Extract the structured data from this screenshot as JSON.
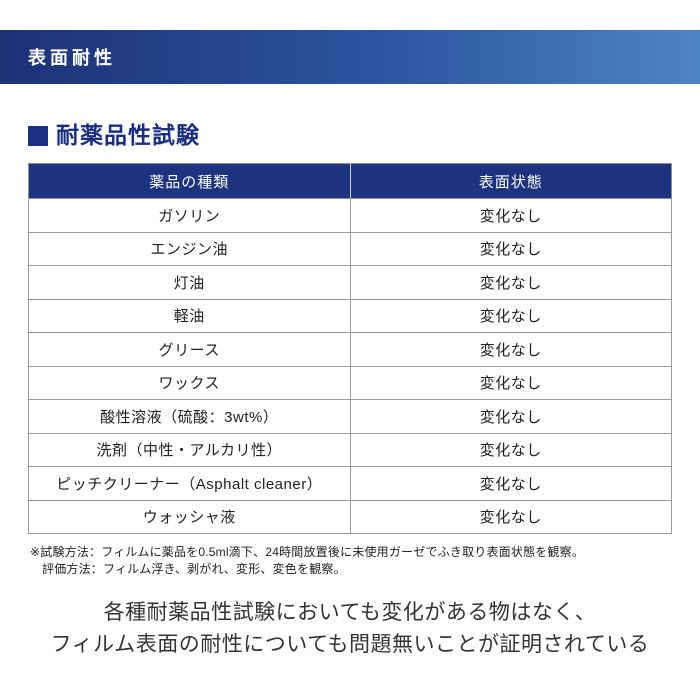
{
  "header_bar": {
    "title": "表面耐性",
    "gradient_left": "#1c3176",
    "gradient_right": "#4d84c3"
  },
  "section": {
    "title": "耐薬品性試験",
    "accent_color": "#1b2f80",
    "bullet_icon": "filled-square"
  },
  "table": {
    "header_bg": "#1e3380",
    "columns": [
      "薬品の種類",
      "表面状態"
    ],
    "rows": [
      {
        "chemical": "ガソリン",
        "state": "変化なし"
      },
      {
        "chemical": "エンジン油",
        "state": "変化なし"
      },
      {
        "chemical": "灯油",
        "state": "変化なし"
      },
      {
        "chemical": "軽油",
        "state": "変化なし"
      },
      {
        "chemical": "グリース",
        "state": "変化なし"
      },
      {
        "chemical": "ワックス",
        "state": "変化なし"
      },
      {
        "chemical": "酸性溶液（硫酸：3wt%）",
        "state": "変化なし"
      },
      {
        "chemical": "洗剤（中性・アルカリ性）",
        "state": "変化なし"
      },
      {
        "chemical": "ピッチクリーナー（Asphalt cleaner）",
        "state": "変化なし"
      },
      {
        "chemical": "ウォッシャ液",
        "state": "変化なし"
      }
    ]
  },
  "footnote": {
    "line1": "※試験方法：フィルムに薬品を0.5ml滴下、24時間放置後に未使用ガーゼでふき取り表面状態を観察。",
    "line2": "評価方法：フィルム浮き、剥がれ、変形、変色を観察。"
  },
  "conclusion": {
    "line1": "各種耐薬品性試験においても変化がある物はなく、",
    "line2": "フィルム表面の耐性についても問題無いことが証明されている"
  }
}
